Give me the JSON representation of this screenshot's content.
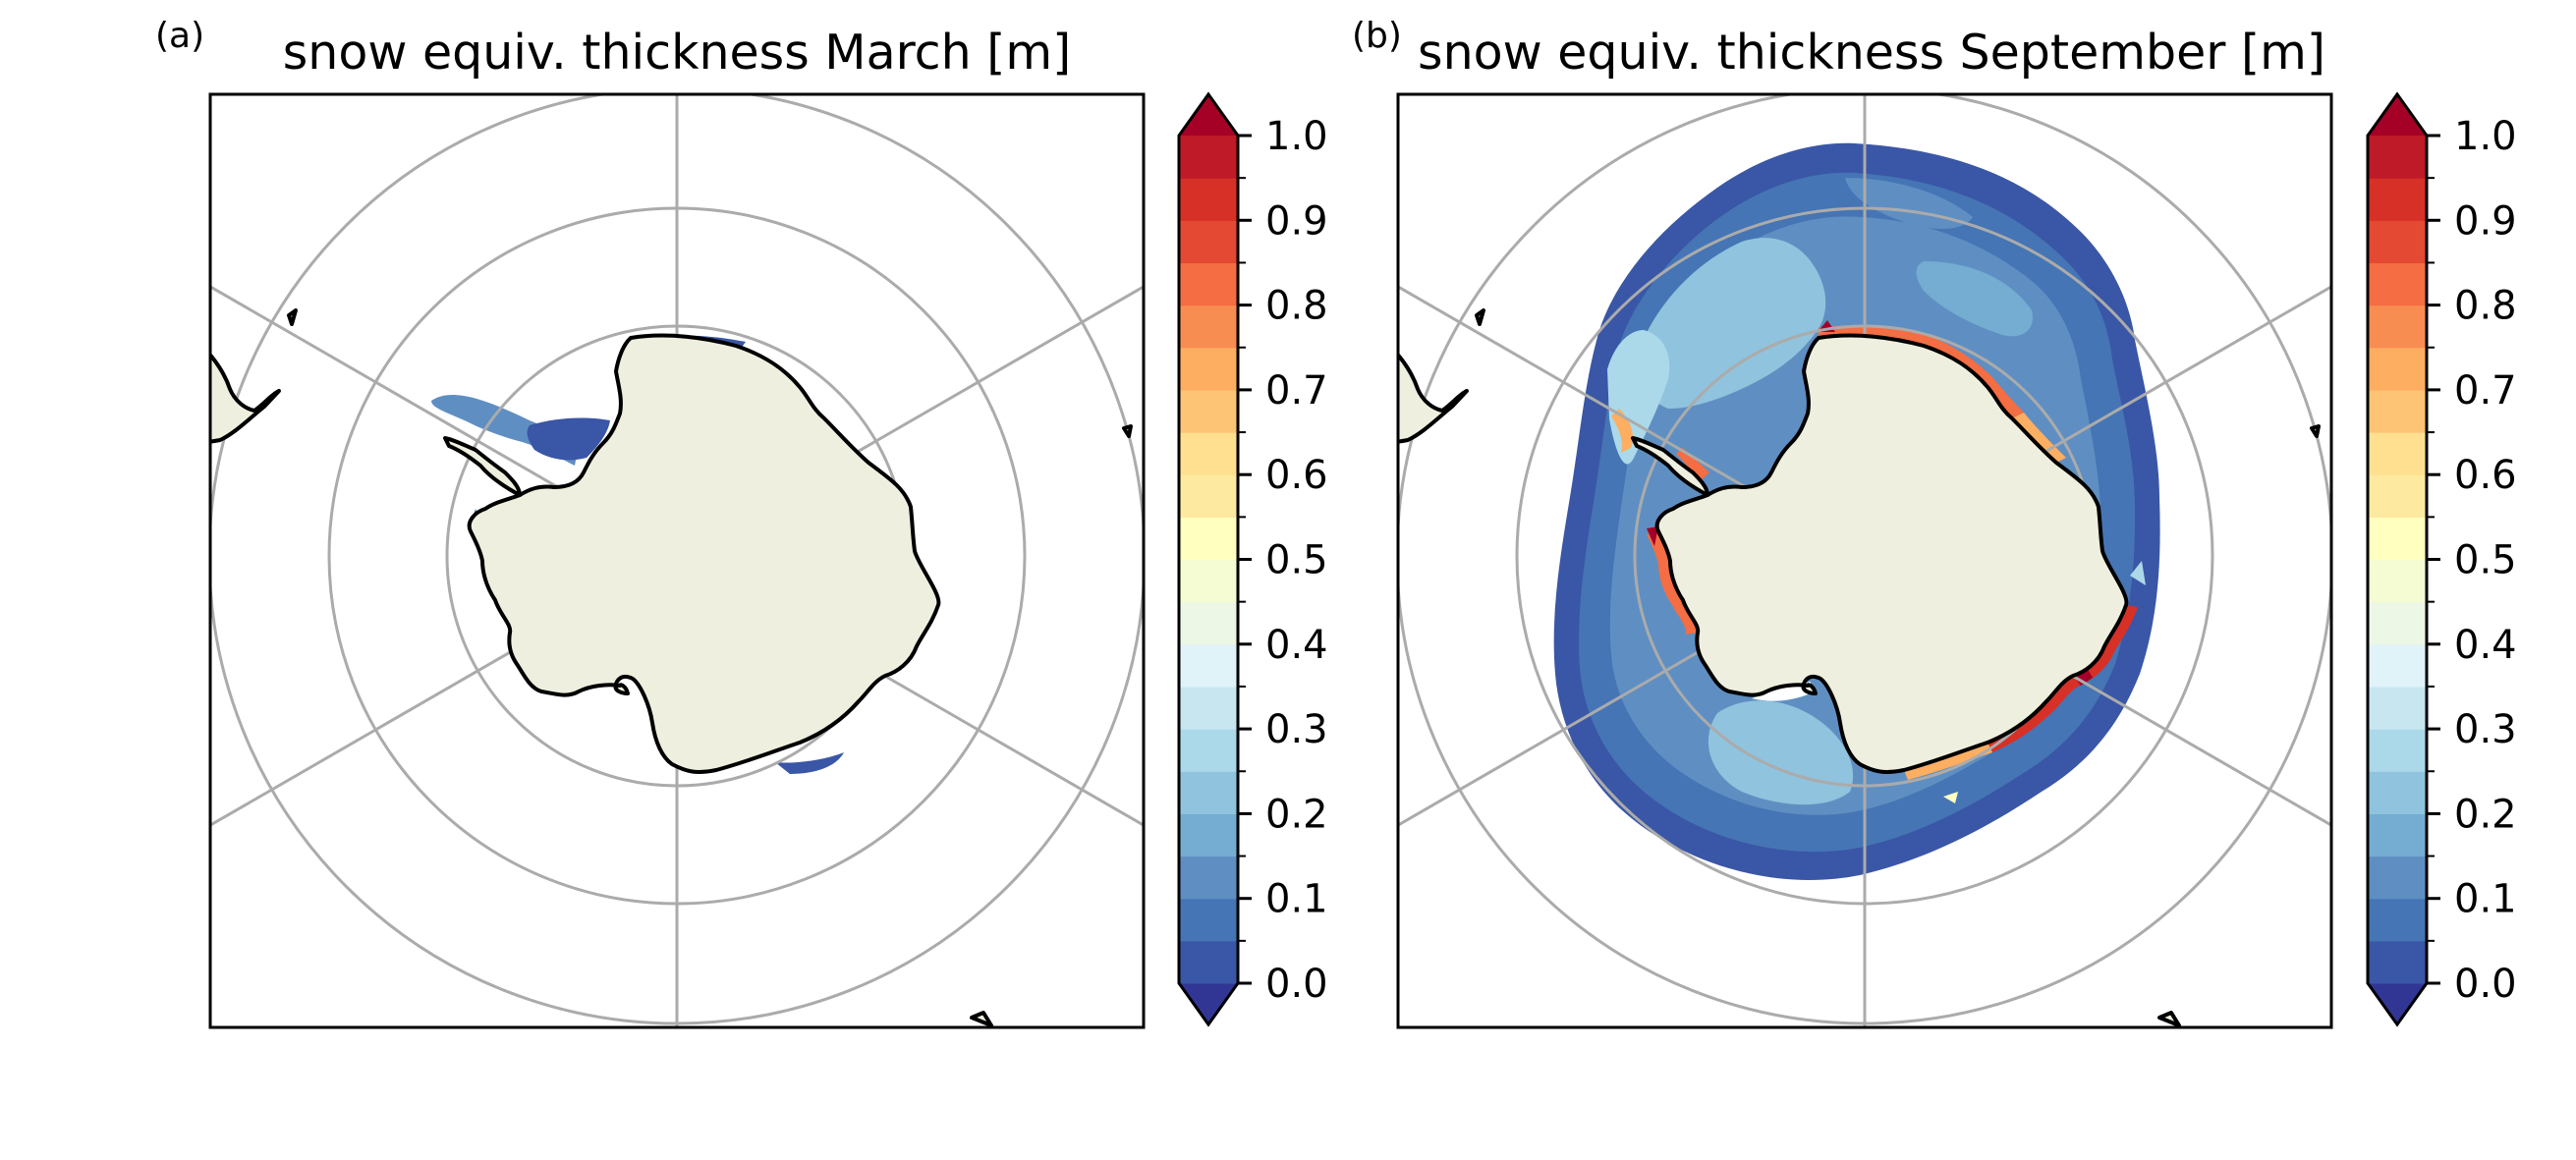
{
  "figure": {
    "colorbar": {
      "ticks": [
        "1.0",
        "0.9",
        "0.8",
        "0.7",
        "0.6",
        "0.5",
        "0.4",
        "0.3",
        "0.2",
        "0.1",
        "0.0"
      ],
      "min": 0.0,
      "max": 1.0,
      "step": 0.05,
      "extend": "both",
      "colormap": "RdYlBu_r",
      "colors": [
        "#313695",
        "#3a56a6",
        "#4575b4",
        "#5f8fc2",
        "#74add1",
        "#90c3dd",
        "#abd9e9",
        "#c7e6f0",
        "#e0f3f8",
        "#ecf7e6",
        "#f5fbd2",
        "#ffffbf",
        "#fee9a0",
        "#fee090",
        "#fdc476",
        "#fdae61",
        "#f88d52",
        "#f46d43",
        "#e34933",
        "#d73027",
        "#bf1a27",
        "#a50026"
      ]
    },
    "panels": [
      {
        "id": "a",
        "label": "(a)",
        "title": "snow equiv. thickness March [m]",
        "month": "March",
        "projection": "south-polar-stereographic",
        "land_color": "#efefdf",
        "extent": "sparse coastal patches (Weddell Sea, Ross Sea, East Antarctic coast)"
      },
      {
        "id": "b",
        "label": "(b)",
        "title": "snow equiv. thickness September [m]",
        "month": "September",
        "projection": "south-polar-stereographic",
        "land_color": "#efefdf",
        "extent": "full circumpolar ring, mostly 0.0–0.3 m, maxima near 1.0 m at coast"
      }
    ]
  }
}
